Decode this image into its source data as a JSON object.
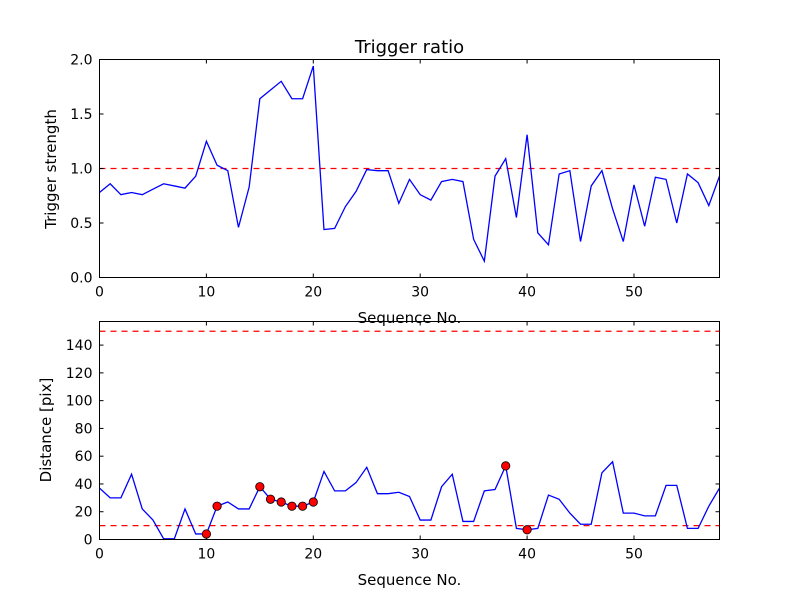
{
  "chart_data": [
    {
      "type": "line",
      "title": "Trigger ratio",
      "xlabel": "Sequence No.",
      "ylabel": "Trigger strength",
      "xlim": [
        0,
        58
      ],
      "ylim": [
        0,
        2.0
      ],
      "xticks": [
        0,
        10,
        20,
        30,
        40,
        50
      ],
      "yticks": [
        0.0,
        0.5,
        1.0,
        1.5,
        2.0
      ],
      "ytick_labels": [
        "0.0",
        "0.5",
        "1.0",
        "1.5",
        "2.0"
      ],
      "grid": false,
      "series": [
        {
          "color": "#0000ff",
          "x": [
            0,
            1,
            2,
            3,
            4,
            5,
            6,
            7,
            8,
            9,
            10,
            11,
            12,
            13,
            14,
            15,
            16,
            17,
            18,
            19,
            20,
            21,
            22,
            23,
            24,
            25,
            26,
            27,
            28,
            29,
            30,
            31,
            32,
            33,
            34,
            35,
            36,
            37,
            38,
            39,
            40,
            41,
            42,
            43,
            44,
            45,
            46,
            47,
            48,
            49,
            50,
            51,
            52,
            53,
            54,
            55,
            56,
            57,
            58
          ],
          "values": [
            0.78,
            0.86,
            0.76,
            0.78,
            0.76,
            0.81,
            0.86,
            0.84,
            0.82,
            0.93,
            1.25,
            1.03,
            0.98,
            0.46,
            0.83,
            1.64,
            1.72,
            1.8,
            1.64,
            1.64,
            1.94,
            0.44,
            0.45,
            0.65,
            0.79,
            0.99,
            0.98,
            0.98,
            0.68,
            0.9,
            0.76,
            0.71,
            0.88,
            0.9,
            0.88,
            0.35,
            0.15,
            0.93,
            1.09,
            0.55,
            1.31,
            0.41,
            0.3,
            0.95,
            0.98,
            0.33,
            0.84,
            0.98,
            0.63,
            0.33,
            0.85,
            0.47,
            0.92,
            0.9,
            0.5,
            0.95,
            0.87,
            0.66,
            0.93
          ]
        }
      ],
      "hlines": [
        {
          "y": 1.0,
          "color": "#ff0000",
          "style": "dashed"
        }
      ]
    },
    {
      "type": "line",
      "title": "",
      "xlabel": "Sequence No.",
      "ylabel": "Distance [pix]",
      "xlim": [
        0,
        58
      ],
      "ylim": [
        0,
        157
      ],
      "xticks": [
        0,
        10,
        20,
        30,
        40,
        50
      ],
      "yticks": [
        0,
        20,
        40,
        60,
        80,
        100,
        120,
        140
      ],
      "ytick_labels": [
        "0",
        "20",
        "40",
        "60",
        "80",
        "100",
        "120",
        "140"
      ],
      "grid": false,
      "series": [
        {
          "color": "#0000ff",
          "x": [
            0,
            1,
            2,
            3,
            4,
            5,
            6,
            7,
            8,
            9,
            10,
            11,
            12,
            13,
            14,
            15,
            16,
            17,
            18,
            19,
            20,
            21,
            22,
            23,
            24,
            25,
            26,
            27,
            28,
            29,
            30,
            31,
            32,
            33,
            34,
            35,
            36,
            37,
            38,
            39,
            40,
            41,
            42,
            43,
            44,
            45,
            46,
            47,
            48,
            49,
            50,
            51,
            52,
            53,
            54,
            55,
            56,
            57,
            58
          ],
          "values": [
            37,
            30,
            30,
            47,
            22,
            14,
            0.5,
            0.5,
            22,
            4,
            4,
            24,
            27,
            22,
            22,
            38,
            29,
            27,
            24,
            24,
            27,
            49,
            35,
            35,
            41,
            52,
            33,
            33,
            34,
            31,
            14,
            14,
            38,
            47,
            13,
            13,
            35,
            36,
            53,
            8,
            7,
            8,
            32,
            29,
            19,
            11,
            11,
            48,
            56,
            19,
            19,
            17,
            17,
            39,
            39,
            8,
            8,
            24,
            37
          ]
        }
      ],
      "markers": {
        "color": "#ff0000",
        "x": [
          10,
          11,
          15,
          16,
          17,
          18,
          19,
          20,
          38,
          40
        ],
        "y": [
          4,
          24,
          38,
          29,
          27,
          24,
          24,
          27,
          53,
          7
        ]
      },
      "hlines": [
        {
          "y": 150,
          "color": "#ff0000",
          "style": "dashed"
        },
        {
          "y": 10,
          "color": "#ff0000",
          "style": "dashed"
        }
      ]
    }
  ]
}
